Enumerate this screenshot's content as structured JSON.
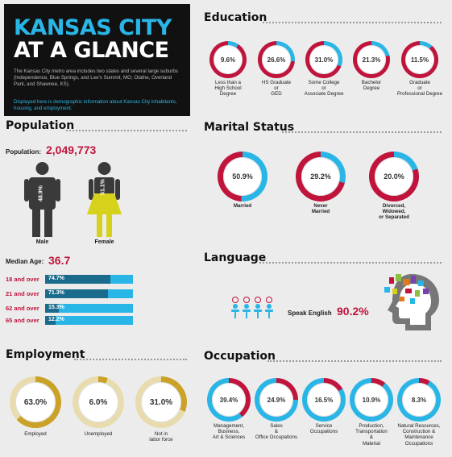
{
  "header": {
    "title_line1": "KANSAS CITY",
    "title_line2": "AT A GLANCE",
    "intro": "The Kansas City metro area includes two states and several large suburbs (Independence, Blue Springs, and Lee's Summit, MO; Olathe, Overland Park, and Shawnee, KS).",
    "intro2": "Displayed here is demographic information about Kansas City inhabitants, housing, and employment."
  },
  "education": {
    "heading": "Education",
    "items": [
      {
        "value": "9.6%",
        "pct": 9.6,
        "label": "Less than a\nHigh School\nDegree"
      },
      {
        "value": "26.6%",
        "pct": 26.6,
        "label": "HS Graduate\nor\nGED"
      },
      {
        "value": "31.0%",
        "pct": 31.0,
        "label": "Some College\nor\nAssociate Degree"
      },
      {
        "value": "21.3%",
        "pct": 21.3,
        "label": "Bachelor\nDegree"
      },
      {
        "value": "11.5%",
        "pct": 11.5,
        "label": "Graduate\nor\nProfessional Degree"
      }
    ]
  },
  "population": {
    "heading": "Population",
    "total_label": "Population:",
    "total_value": "2,049,773",
    "male_label": "Male",
    "male_pct": "48.9%",
    "female_label": "Female",
    "female_pct": "51.1%",
    "median_label": "Median Age:",
    "median_value": "36.7",
    "age_bars": [
      {
        "label": "18 and over",
        "value": "74.7%",
        "pct": 74.7
      },
      {
        "label": "21 and over",
        "value": "71.3%",
        "pct": 71.3
      },
      {
        "label": "62 and over",
        "value": "15.3%",
        "pct": 15.3
      },
      {
        "label": "65 and over",
        "value": "12.2%",
        "pct": 12.2
      }
    ]
  },
  "marital": {
    "heading": "Marital Status",
    "items": [
      {
        "value": "50.9%",
        "pct": 50.9,
        "label": "Married"
      },
      {
        "value": "29.2%",
        "pct": 29.2,
        "label": "Never\nMarried"
      },
      {
        "value": "20.0%",
        "pct": 20.0,
        "label": "Divorced,\nWidowed,\nor Separated"
      }
    ]
  },
  "language": {
    "heading": "Language",
    "speak_label": "Speak English",
    "speak_value": "90.2%"
  },
  "employment": {
    "heading": "Employment",
    "items": [
      {
        "value": "63.0%",
        "pct": 63.0,
        "label": "Employed"
      },
      {
        "value": "6.0%",
        "pct": 6.0,
        "label": "Unemployed"
      },
      {
        "value": "31.0%",
        "pct": 31.0,
        "label": "Not in\nlabor force"
      }
    ]
  },
  "occupation": {
    "heading": "Occupation",
    "items": [
      {
        "value": "39.4%",
        "pct": 39.4,
        "label": "Management,\nBusiness,\nArt & Sciences"
      },
      {
        "value": "24.9%",
        "pct": 24.9,
        "label": "Sales\n&\nOffice Occupations"
      },
      {
        "value": "16.5%",
        "pct": 16.5,
        "label": "Service\nOccupations"
      },
      {
        "value": "10.9%",
        "pct": 10.9,
        "label": "Production,\nTransportation\n&\nMaterial"
      },
      {
        "value": "8.3%",
        "pct": 8.3,
        "label": "Natural Resources,\nConstruction &\nMaintenance\nOccupations"
      }
    ]
  },
  "colors": {
    "ring_red": "#c0143c",
    "ring_blue": "#29b6e6",
    "ring_gold": "#c9a227",
    "ring_gold_light": "#e8dcae",
    "accent_red": "#c0143c",
    "male_body": "#3a3a3a",
    "female_body": "#d6d21c"
  }
}
